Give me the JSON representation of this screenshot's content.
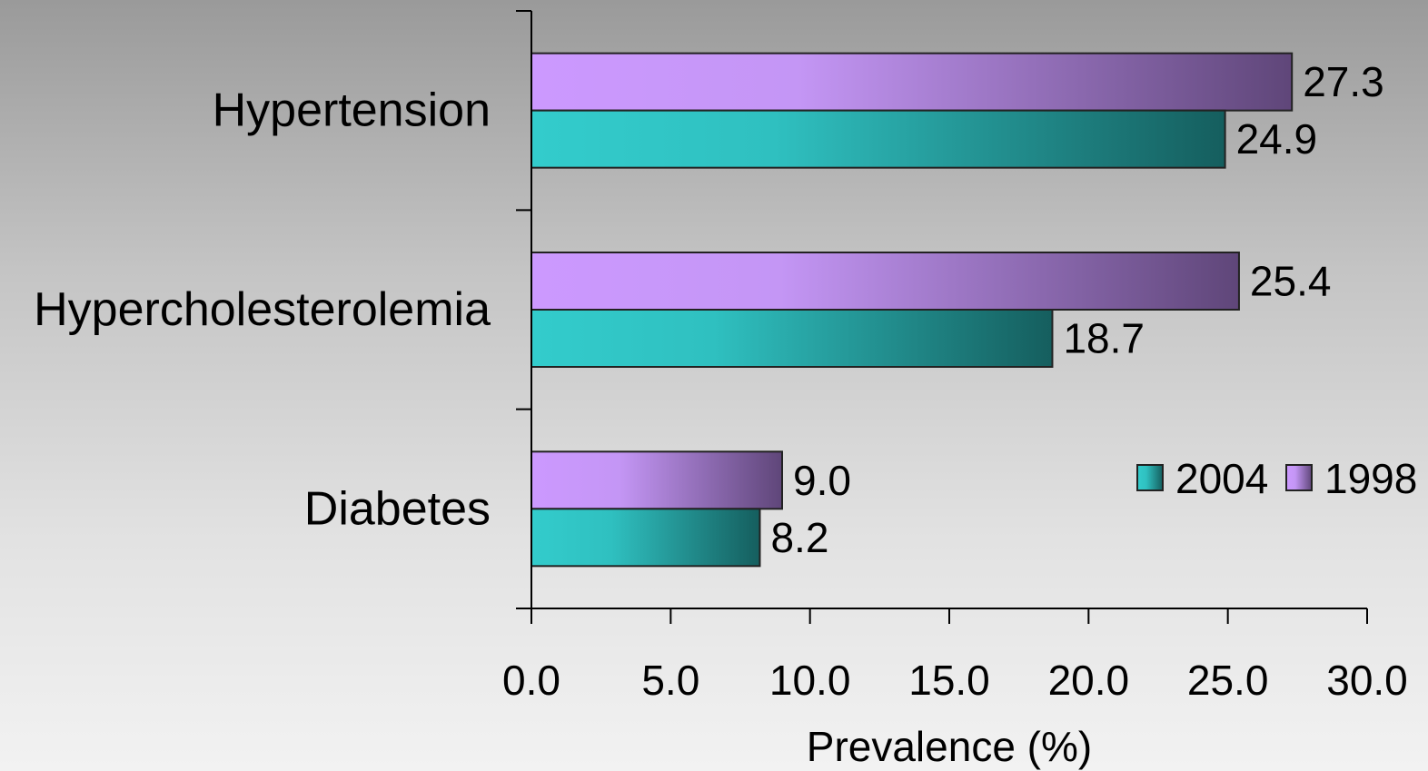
{
  "chart_data": {
    "type": "bar",
    "orientation": "horizontal",
    "categories": [
      "Hypertension",
      "Hypercholesterolemia",
      "Diabetes"
    ],
    "series": [
      {
        "name": "1998",
        "values": [
          27.3,
          25.4,
          9.0
        ],
        "labels": [
          "27.3",
          "25.4",
          "9.0"
        ]
      },
      {
        "name": "2004",
        "values": [
          24.9,
          18.7,
          8.2
        ],
        "labels": [
          "24.9",
          "18.7",
          "8.2"
        ]
      }
    ],
    "legend_order": [
      "2004",
      "1998"
    ],
    "legend_position": "right",
    "xlabel": "Prevalence (%)",
    "ylabel": "",
    "xlim": [
      0,
      30
    ],
    "xticks": [
      0,
      5,
      10,
      15,
      20,
      25,
      30
    ],
    "xtick_labels": [
      "0.0",
      "5.0",
      "10.0",
      "15.0",
      "20.0",
      "25.0",
      "30.0"
    ],
    "grid": false,
    "colors": {
      "1998": {
        "light": "#cc99ff",
        "dark": "#5f4679"
      },
      "2004": {
        "light": "#33cccc",
        "dark": "#155e5e"
      }
    }
  }
}
